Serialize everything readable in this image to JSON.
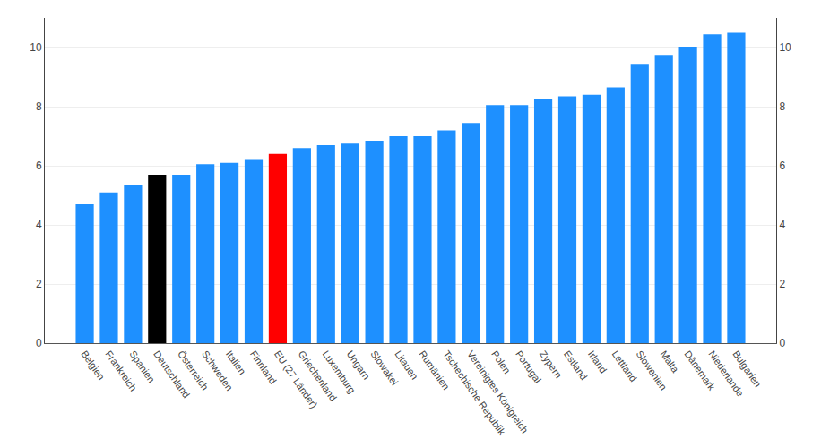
{
  "chart_data": {
    "type": "bar",
    "categories": [
      "Belgien",
      "Frankreich",
      "Spanien",
      "Deutschland",
      "Österreich",
      "Schweden",
      "Italien",
      "Finnland",
      "EU (27 Länder)",
      "Griechenland",
      "Luxemburg",
      "Ungarn",
      "Slowakei",
      "Litauen",
      "Rumänien",
      "Tschechische Republik",
      "Vereinigtes Königreich",
      "Polen",
      "Portugal",
      "Zypern",
      "Estland",
      "Irland",
      "Lettland",
      "Slowenien",
      "Malta",
      "Dänemark",
      "Niederlande",
      "Bulgarien"
    ],
    "values": [
      4.7,
      5.1,
      5.35,
      5.7,
      5.7,
      6.05,
      6.1,
      6.2,
      6.4,
      6.6,
      6.7,
      6.75,
      6.85,
      7.0,
      7.0,
      7.2,
      7.45,
      8.05,
      8.05,
      8.25,
      8.35,
      8.4,
      8.65,
      9.45,
      9.75,
      10.0,
      10.45,
      10.5
    ],
    "colors": [
      "#1e90ff",
      "#1e90ff",
      "#1e90ff",
      "#000000",
      "#1e90ff",
      "#1e90ff",
      "#1e90ff",
      "#1e90ff",
      "#ff0000",
      "#1e90ff",
      "#1e90ff",
      "#1e90ff",
      "#1e90ff",
      "#1e90ff",
      "#1e90ff",
      "#1e90ff",
      "#1e90ff",
      "#1e90ff",
      "#1e90ff",
      "#1e90ff",
      "#1e90ff",
      "#1e90ff",
      "#1e90ff",
      "#1e90ff",
      "#1e90ff",
      "#1e90ff",
      "#1e90ff",
      "#1e90ff"
    ],
    "ylim": [
      0,
      11
    ],
    "yticks": [
      0,
      2,
      4,
      6,
      8,
      10
    ],
    "y2lim": [
      0,
      11
    ],
    "y2ticks": [
      0,
      2,
      4,
      6,
      8,
      10
    ],
    "grid": true
  }
}
